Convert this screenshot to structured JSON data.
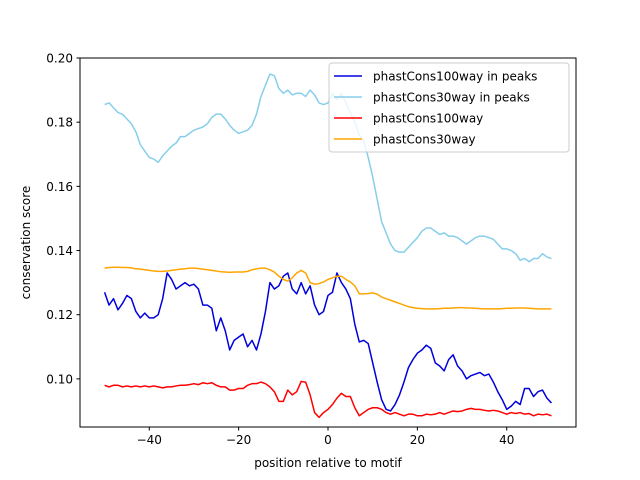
{
  "chart_data": {
    "type": "line",
    "title": "",
    "xlabel": "position relative to motif",
    "ylabel": "conservation score",
    "xlim": [
      -55.5,
      55.5
    ],
    "ylim": [
      0.085,
      0.2
    ],
    "xticks": [
      -40,
      -20,
      0,
      20,
      40
    ],
    "yticks": [
      0.1,
      0.12,
      0.14,
      0.16,
      0.18,
      0.2
    ],
    "xtick_labels": [
      "−40",
      "−20",
      "0",
      "20",
      "40"
    ],
    "ytick_labels": [
      "0.10",
      "0.12",
      "0.14",
      "0.16",
      "0.18",
      "0.20"
    ],
    "grid": false,
    "legend_position": "upper right",
    "x": [
      -50,
      -49,
      -48,
      -47,
      -46,
      -45,
      -44,
      -43,
      -42,
      -41,
      -40,
      -39,
      -38,
      -37,
      -36,
      -35,
      -34,
      -33,
      -32,
      -31,
      -30,
      -29,
      -28,
      -27,
      -26,
      -25,
      -24,
      -23,
      -22,
      -21,
      -20,
      -19,
      -18,
      -17,
      -16,
      -15,
      -14,
      -13,
      -12,
      -11,
      -10,
      -9,
      -8,
      -7,
      -6,
      -5,
      -4,
      -3,
      -2,
      -1,
      0,
      1,
      2,
      3,
      4,
      5,
      6,
      7,
      8,
      9,
      10,
      11,
      12,
      13,
      14,
      15,
      16,
      17,
      18,
      19,
      20,
      21,
      22,
      23,
      24,
      25,
      26,
      27,
      28,
      29,
      30,
      31,
      32,
      33,
      34,
      35,
      36,
      37,
      38,
      39,
      40,
      41,
      42,
      43,
      44,
      45,
      46,
      47,
      48,
      49,
      50
    ],
    "series": [
      {
        "name": "phastCons100way in peaks",
        "color": "#0000dd",
        "values": [
          0.127,
          0.123,
          0.125,
          0.1215,
          0.1235,
          0.126,
          0.125,
          0.121,
          0.119,
          0.1205,
          0.119,
          0.119,
          0.12,
          0.125,
          0.133,
          0.131,
          0.128,
          0.129,
          0.13,
          0.129,
          0.1295,
          0.128,
          0.123,
          0.123,
          0.122,
          0.115,
          0.119,
          0.115,
          0.109,
          0.112,
          0.113,
          0.114,
          0.11,
          0.112,
          0.109,
          0.114,
          0.121,
          0.13,
          0.128,
          0.129,
          0.132,
          0.133,
          0.128,
          0.1265,
          0.13,
          0.1265,
          0.129,
          0.123,
          0.12,
          0.121,
          0.126,
          0.127,
          0.133,
          0.13,
          0.128,
          0.125,
          0.117,
          0.1115,
          0.112,
          0.111,
          0.105,
          0.099,
          0.0935,
          0.0905,
          0.09,
          0.092,
          0.095,
          0.099,
          0.1035,
          0.106,
          0.108,
          0.109,
          0.1105,
          0.1095,
          0.105,
          0.104,
          0.1025,
          0.106,
          0.1075,
          0.104,
          0.1025,
          0.1,
          0.101,
          0.1015,
          0.102,
          0.101,
          0.1015,
          0.099,
          0.096,
          0.0935,
          0.0905,
          0.0915,
          0.093,
          0.092,
          0.097,
          0.097,
          0.0945,
          0.096,
          0.0965,
          0.094,
          0.0925
        ]
      },
      {
        "name": "phastCons30way in peaks",
        "color": "#87ceeb",
        "values": [
          0.1855,
          0.186,
          0.1845,
          0.183,
          0.1825,
          0.181,
          0.1795,
          0.177,
          0.173,
          0.171,
          0.169,
          0.1685,
          0.1675,
          0.1695,
          0.171,
          0.1725,
          0.1735,
          0.1755,
          0.1755,
          0.1765,
          0.1775,
          0.178,
          0.1785,
          0.1795,
          0.1815,
          0.1825,
          0.1825,
          0.181,
          0.179,
          0.1775,
          0.1765,
          0.177,
          0.1775,
          0.179,
          0.1825,
          0.188,
          0.1915,
          0.195,
          0.1945,
          0.1905,
          0.189,
          0.19,
          0.1885,
          0.189,
          0.189,
          0.188,
          0.19,
          0.1885,
          0.186,
          0.1855,
          0.186,
          0.189,
          0.187,
          0.189,
          0.186,
          0.183,
          0.18,
          0.176,
          0.174,
          0.169,
          0.163,
          0.156,
          0.149,
          0.1455,
          0.142,
          0.14,
          0.1395,
          0.1395,
          0.141,
          0.1425,
          0.144,
          0.146,
          0.147,
          0.147,
          0.146,
          0.145,
          0.1455,
          0.1445,
          0.1445,
          0.144,
          0.143,
          0.142,
          0.143,
          0.144,
          0.1445,
          0.1445,
          0.144,
          0.1435,
          0.142,
          0.1405,
          0.1405,
          0.14,
          0.139,
          0.137,
          0.1375,
          0.1365,
          0.1375,
          0.1375,
          0.139,
          0.138,
          0.1375
        ]
      },
      {
        "name": "phastCons100way",
        "color": "#ff0000",
        "values": [
          0.098,
          0.0975,
          0.098,
          0.098,
          0.0975,
          0.0978,
          0.0975,
          0.0978,
          0.0975,
          0.0978,
          0.0975,
          0.0978,
          0.0975,
          0.0972,
          0.0975,
          0.0975,
          0.0978,
          0.098,
          0.098,
          0.0982,
          0.0985,
          0.0982,
          0.0988,
          0.0985,
          0.0988,
          0.098,
          0.0975,
          0.0975,
          0.0965,
          0.0965,
          0.097,
          0.097,
          0.098,
          0.0985,
          0.0985,
          0.099,
          0.0985,
          0.0975,
          0.096,
          0.093,
          0.093,
          0.0965,
          0.095,
          0.096,
          0.0992,
          0.099,
          0.095,
          0.0895,
          0.088,
          0.0895,
          0.0905,
          0.092,
          0.094,
          0.0955,
          0.0945,
          0.0945,
          0.091,
          0.0885,
          0.0895,
          0.0905,
          0.091,
          0.091,
          0.0905,
          0.0895,
          0.089,
          0.0895,
          0.089,
          0.0885,
          0.089,
          0.089,
          0.0885,
          0.0885,
          0.089,
          0.0888,
          0.089,
          0.0895,
          0.089,
          0.0895,
          0.09,
          0.0898,
          0.09,
          0.0905,
          0.0908,
          0.0905,
          0.0905,
          0.0902,
          0.09,
          0.0902,
          0.09,
          0.0895,
          0.089,
          0.0895,
          0.0892,
          0.0895,
          0.089,
          0.0892,
          0.0885,
          0.089,
          0.0888,
          0.089,
          0.0885
        ]
      },
      {
        "name": "phastCons30way",
        "color": "#ffa500",
        "values": [
          0.1345,
          0.1347,
          0.1348,
          0.1348,
          0.1347,
          0.1347,
          0.1346,
          0.1343,
          0.1342,
          0.134,
          0.1338,
          0.1336,
          0.1335,
          0.1335,
          0.1336,
          0.1338,
          0.134,
          0.1342,
          0.1343,
          0.1345,
          0.1345,
          0.1344,
          0.1342,
          0.134,
          0.1338,
          0.1336,
          0.1334,
          0.1333,
          0.1332,
          0.1333,
          0.1333,
          0.1333,
          0.1335,
          0.134,
          0.1343,
          0.1345,
          0.1345,
          0.134,
          0.1333,
          0.132,
          0.131,
          0.1305,
          0.1315,
          0.133,
          0.1338,
          0.133,
          0.13,
          0.1295,
          0.1297,
          0.1302,
          0.131,
          0.1315,
          0.132,
          0.132,
          0.131,
          0.1302,
          0.129,
          0.1265,
          0.1265,
          0.1266,
          0.1268,
          0.1264,
          0.1255,
          0.125,
          0.1245,
          0.124,
          0.1235,
          0.123,
          0.1225,
          0.1222,
          0.122,
          0.1219,
          0.1218,
          0.1218,
          0.1218,
          0.1219,
          0.122,
          0.122,
          0.1221,
          0.1222,
          0.1222,
          0.1221,
          0.1221,
          0.122,
          0.1219,
          0.1218,
          0.1218,
          0.1218,
          0.1218,
          0.1219,
          0.122,
          0.122,
          0.1221,
          0.1221,
          0.1221,
          0.122,
          0.1219,
          0.1218,
          0.1218,
          0.1218,
          0.1218
        ]
      }
    ]
  }
}
